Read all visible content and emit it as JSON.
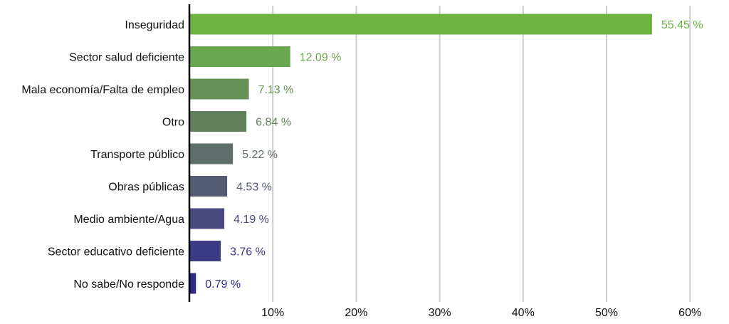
{
  "chart_data": {
    "type": "bar",
    "orientation": "horizontal",
    "categories": [
      "Inseguridad",
      "Sector salud deficiente",
      "Mala economía/Falta de empleo",
      "Otro",
      "Transporte público",
      "Obras públicas",
      "Medio ambiente/Agua",
      "Sector educativo deficiente",
      "No sabe/No responde"
    ],
    "values": [
      55.45,
      12.09,
      7.13,
      6.84,
      5.22,
      4.53,
      4.19,
      3.76,
      0.79
    ],
    "value_labels": [
      "55.45 %",
      "12.09 %",
      "7.13 %",
      "6.84 %",
      "5.22 %",
      "4.53 %",
      "4.19 %",
      "3.76 %",
      "0.79 %"
    ],
    "colors": [
      "#6db33f",
      "#6aa84f",
      "#679157",
      "#63805c",
      "#5f6e6b",
      "#555b73",
      "#4a4a7e",
      "#3d3a86",
      "#2e2a85"
    ],
    "xticks": [
      10,
      20,
      30,
      40,
      50,
      60
    ],
    "xtick_labels": [
      "10%",
      "20%",
      "30%",
      "40%",
      "50%",
      "60%"
    ],
    "xlim": [
      0,
      60
    ],
    "grid": "vertical",
    "title": "",
    "xlabel": "",
    "ylabel": ""
  }
}
